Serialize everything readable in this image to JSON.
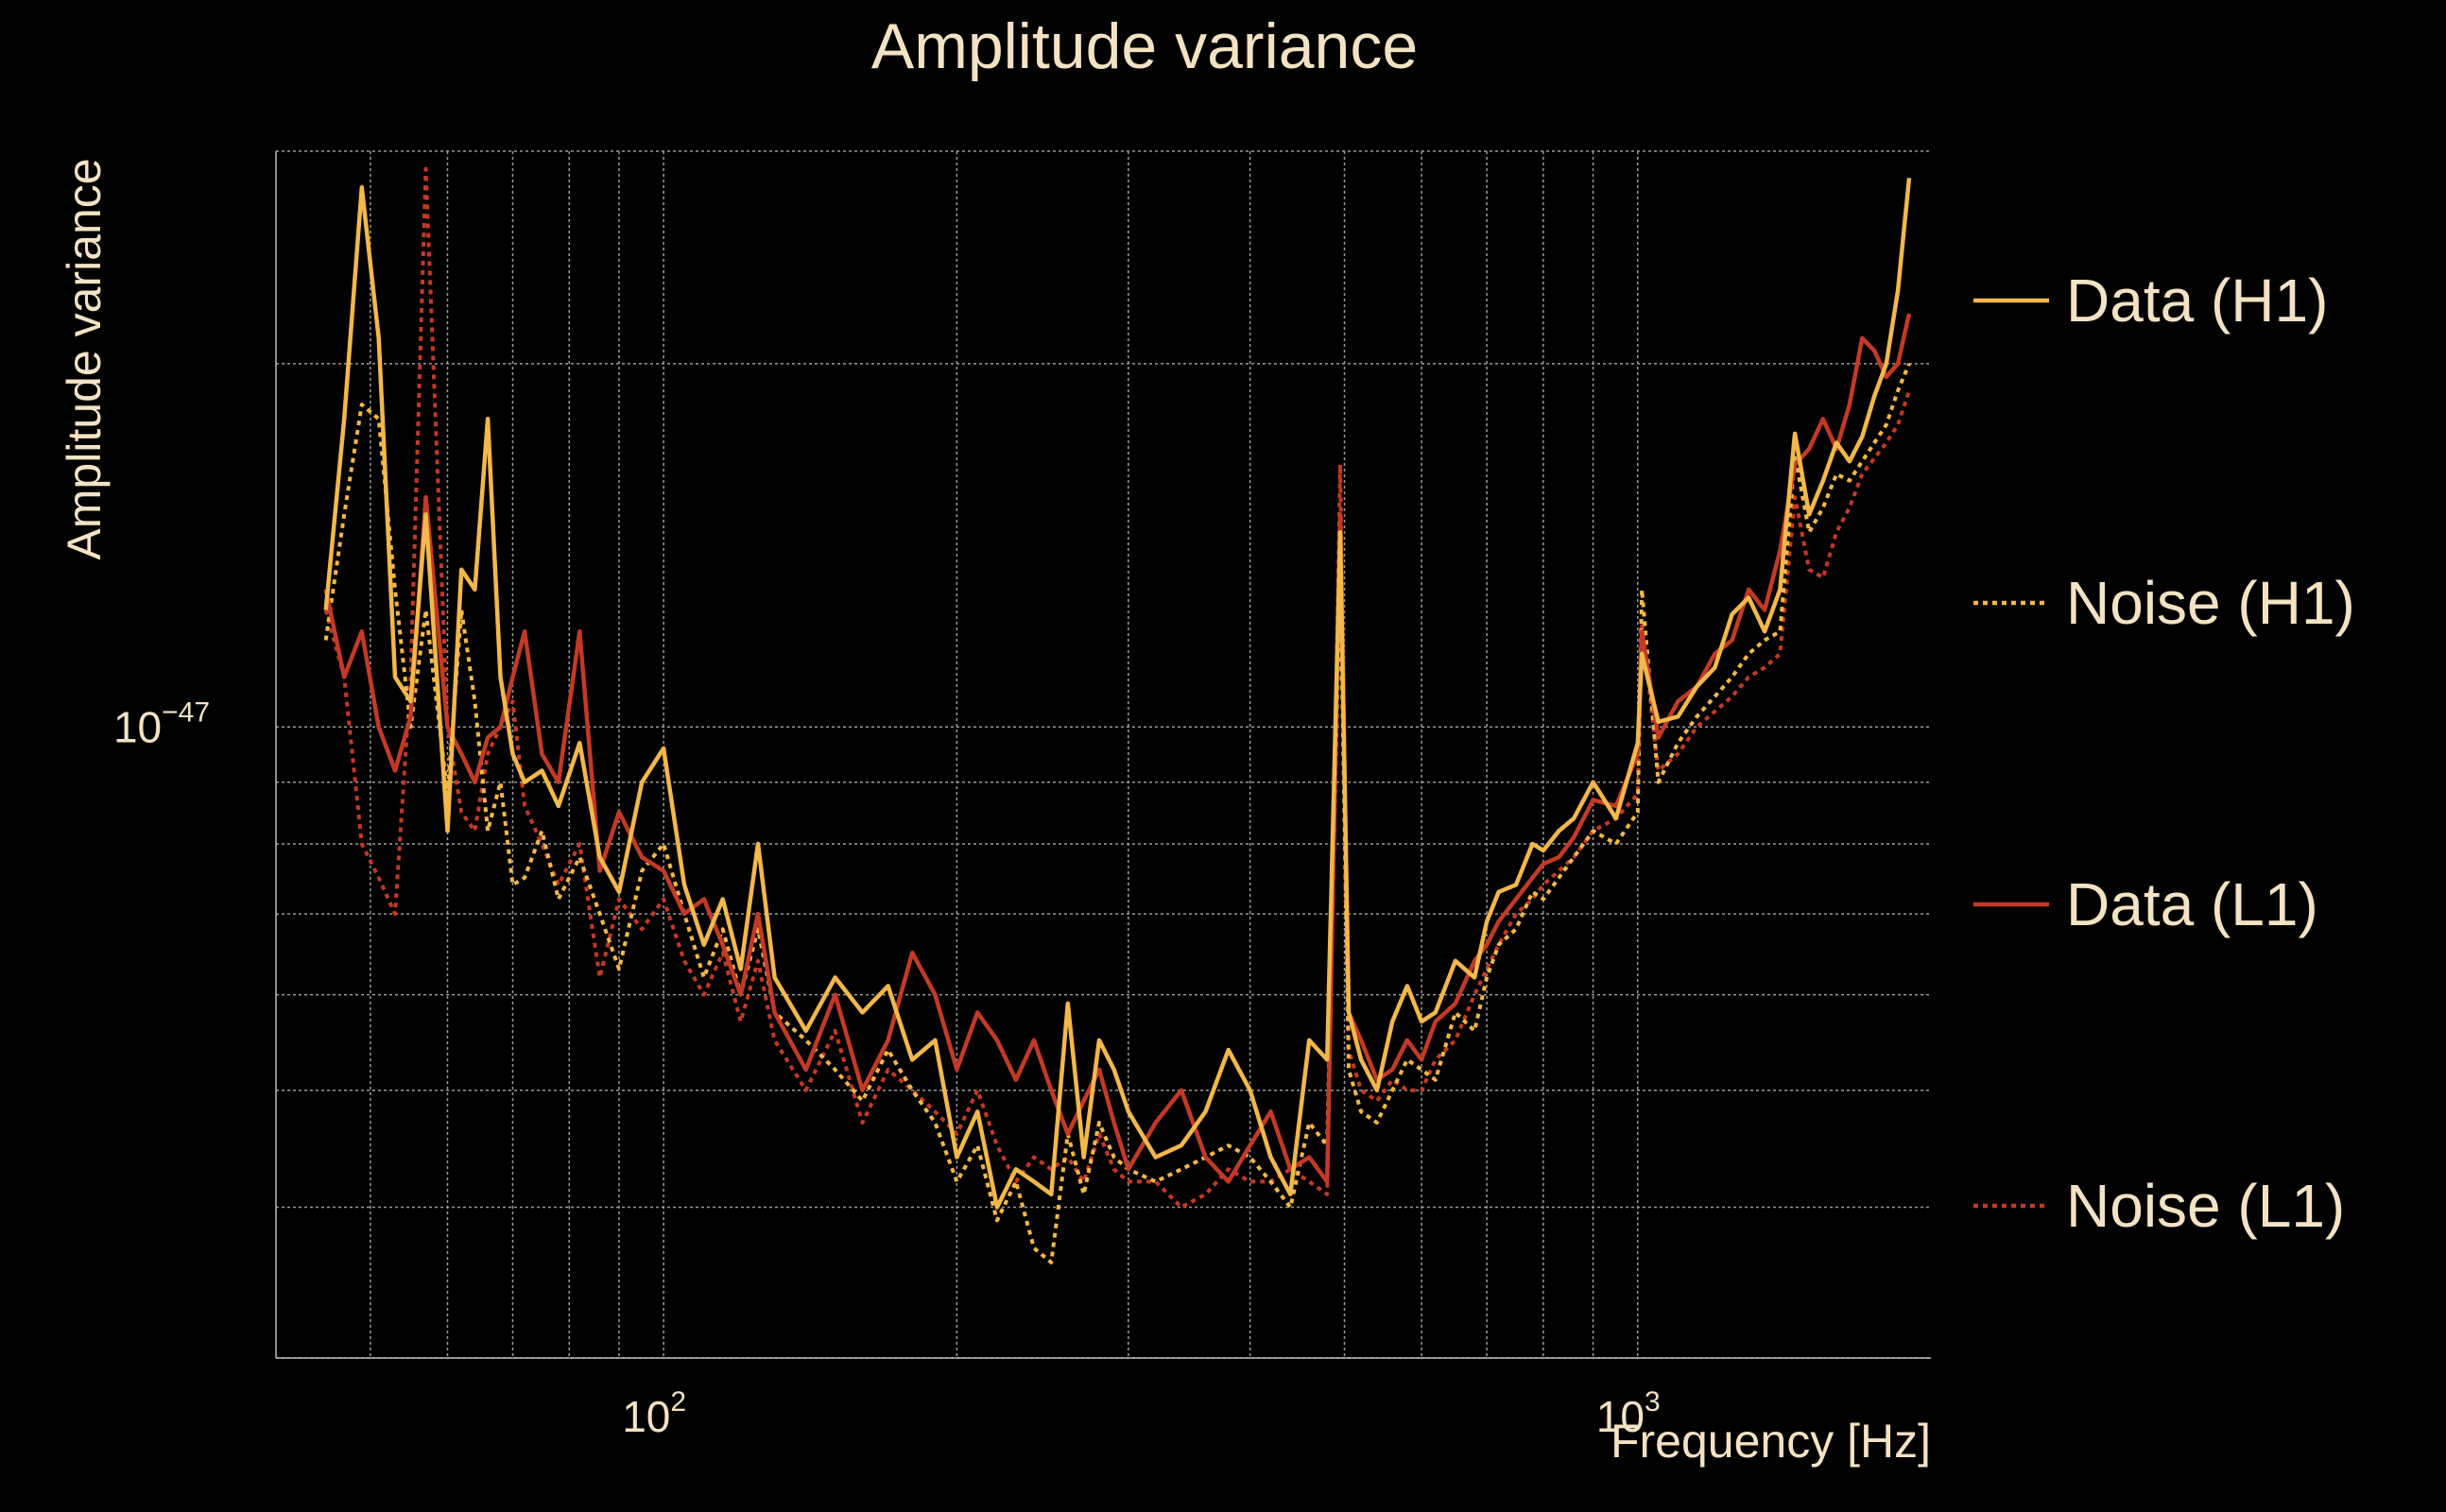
{
  "chart_data": {
    "type": "line",
    "title": "Amplitude variance",
    "xlabel": "Frequency [Hz]",
    "ylabel": "Amplitude variance",
    "x_scale": "log",
    "y_scale": "log",
    "xlim": [
      40,
      2000
    ],
    "ylim": [
      3e-48,
      3e-47
    ],
    "x_ticks": [
      {
        "value": 100,
        "label_base": "10",
        "label_exp": "2"
      },
      {
        "value": 1000,
        "label_base": "10",
        "label_exp": "3"
      }
    ],
    "y_ticks": [
      {
        "value": 1e-47,
        "label_base": "10",
        "label_exp": "−47"
      }
    ],
    "grid": true,
    "legend_position": "right",
    "series": [
      {
        "name": "Data (H1)",
        "color": "#f2b84b",
        "style": "solid",
        "x": [
          45,
          47,
          49,
          51,
          53,
          55,
          57,
          60,
          62,
          64,
          66,
          68,
          70,
          72,
          75,
          78,
          82,
          86,
          90,
          95,
          100,
          105,
          110,
          115,
          120,
          125,
          130,
          140,
          150,
          160,
          170,
          180,
          190,
          200,
          210,
          220,
          230,
          240,
          250,
          260,
          270,
          280,
          290,
          300,
          320,
          340,
          360,
          380,
          400,
          420,
          440,
          460,
          480,
          495,
          505,
          520,
          540,
          560,
          580,
          600,
          620,
          650,
          680,
          700,
          720,
          750,
          780,
          800,
          830,
          860,
          900,
          950,
          1000,
          1010,
          1050,
          1100,
          1150,
          1200,
          1250,
          1300,
          1350,
          1400,
          1450,
          1500,
          1550,
          1600,
          1650,
          1700,
          1750,
          1800,
          1850,
          1900
        ],
        "y": [
          1.25,
          1.8,
          2.8,
          2.1,
          1.1,
          1.05,
          1.5,
          0.82,
          1.35,
          1.3,
          1.8,
          1.1,
          0.95,
          0.9,
          0.92,
          0.86,
          0.97,
          0.78,
          0.73,
          0.9,
          0.96,
          0.74,
          0.66,
          0.72,
          0.63,
          0.8,
          0.62,
          0.56,
          0.62,
          0.58,
          0.61,
          0.53,
          0.55,
          0.44,
          0.48,
          0.4,
          0.43,
          0.42,
          0.41,
          0.59,
          0.44,
          0.55,
          0.52,
          0.48,
          0.44,
          0.45,
          0.48,
          0.54,
          0.5,
          0.44,
          0.41,
          0.55,
          0.53,
          1.45,
          0.58,
          0.53,
          0.5,
          0.57,
          0.61,
          0.57,
          0.58,
          0.64,
          0.62,
          0.69,
          0.73,
          0.74,
          0.8,
          0.79,
          0.82,
          0.84,
          0.9,
          0.84,
          0.97,
          1.15,
          1.01,
          1.02,
          1.08,
          1.12,
          1.24,
          1.28,
          1.2,
          1.3,
          1.75,
          1.5,
          1.6,
          1.72,
          1.66,
          1.74,
          1.88,
          2.0,
          2.3,
          2.85
        ]
      },
      {
        "name": "Noise (H1)",
        "color": "#f2b84b",
        "style": "dotted",
        "x": [
          45,
          47,
          49,
          51,
          53,
          55,
          57,
          60,
          62,
          64,
          66,
          68,
          70,
          72,
          75,
          78,
          82,
          86,
          90,
          95,
          100,
          105,
          110,
          115,
          120,
          125,
          130,
          140,
          150,
          160,
          170,
          180,
          190,
          200,
          210,
          220,
          230,
          240,
          250,
          260,
          270,
          280,
          290,
          300,
          320,
          340,
          360,
          380,
          400,
          420,
          440,
          460,
          480,
          495,
          505,
          520,
          540,
          560,
          580,
          600,
          620,
          650,
          680,
          700,
          720,
          750,
          780,
          800,
          830,
          860,
          900,
          950,
          1000,
          1010,
          1050,
          1100,
          1150,
          1200,
          1250,
          1300,
          1350,
          1400,
          1450,
          1500,
          1550,
          1600,
          1650,
          1700,
          1750,
          1800,
          1850,
          1900
        ],
        "y": [
          1.18,
          1.5,
          1.85,
          1.8,
          1.3,
          1.0,
          1.25,
          0.88,
          1.25,
          1.05,
          0.82,
          0.9,
          0.74,
          0.75,
          0.82,
          0.72,
          0.78,
          0.7,
          0.63,
          0.76,
          0.8,
          0.7,
          0.62,
          0.68,
          0.6,
          0.68,
          0.58,
          0.55,
          0.52,
          0.49,
          0.54,
          0.5,
          0.47,
          0.42,
          0.45,
          0.39,
          0.42,
          0.37,
          0.36,
          0.46,
          0.41,
          0.47,
          0.44,
          0.43,
          0.42,
          0.43,
          0.44,
          0.45,
          0.44,
          0.42,
          0.4,
          0.47,
          0.45,
          1.35,
          0.52,
          0.48,
          0.47,
          0.5,
          0.53,
          0.52,
          0.51,
          0.58,
          0.56,
          0.62,
          0.66,
          0.68,
          0.73,
          0.72,
          0.75,
          0.78,
          0.82,
          0.8,
          0.85,
          1.3,
          0.9,
          0.97,
          1.02,
          1.06,
          1.1,
          1.15,
          1.18,
          1.2,
          1.68,
          1.45,
          1.52,
          1.62,
          1.6,
          1.66,
          1.72,
          1.78,
          1.9,
          2.0
        ]
      },
      {
        "name": "Data (L1)",
        "color": "#c23a27",
        "style": "solid",
        "x": [
          45,
          47,
          49,
          51,
          53,
          55,
          57,
          60,
          62,
          64,
          66,
          68,
          70,
          72,
          75,
          78,
          82,
          86,
          90,
          95,
          100,
          105,
          110,
          115,
          120,
          125,
          130,
          140,
          150,
          160,
          170,
          180,
          190,
          200,
          210,
          220,
          230,
          240,
          250,
          260,
          270,
          280,
          290,
          300,
          320,
          340,
          360,
          380,
          400,
          420,
          440,
          460,
          480,
          495,
          505,
          520,
          540,
          560,
          580,
          600,
          620,
          650,
          680,
          700,
          720,
          750,
          780,
          800,
          830,
          860,
          900,
          950,
          1000,
          1010,
          1050,
          1100,
          1150,
          1200,
          1250,
          1300,
          1350,
          1400,
          1450,
          1500,
          1550,
          1600,
          1650,
          1700,
          1750,
          1800,
          1850,
          1900
        ],
        "y": [
          1.3,
          1.1,
          1.2,
          1.0,
          0.92,
          1.02,
          1.55,
          1.0,
          0.95,
          0.9,
          0.98,
          1.0,
          1.1,
          1.2,
          0.95,
          0.9,
          1.2,
          0.76,
          0.85,
          0.78,
          0.76,
          0.7,
          0.72,
          0.66,
          0.6,
          0.7,
          0.58,
          0.52,
          0.6,
          0.5,
          0.55,
          0.65,
          0.6,
          0.52,
          0.58,
          0.55,
          0.51,
          0.55,
          0.5,
          0.46,
          0.49,
          0.52,
          0.47,
          0.43,
          0.47,
          0.5,
          0.44,
          0.42,
          0.45,
          0.48,
          0.43,
          0.44,
          0.42,
          1.5,
          0.58,
          0.55,
          0.51,
          0.52,
          0.55,
          0.53,
          0.57,
          0.59,
          0.64,
          0.66,
          0.69,
          0.72,
          0.75,
          0.77,
          0.78,
          0.81,
          0.87,
          0.86,
          0.95,
          1.2,
          0.98,
          1.05,
          1.08,
          1.15,
          1.18,
          1.3,
          1.25,
          1.4,
          1.65,
          1.7,
          1.8,
          1.7,
          1.85,
          2.1,
          2.05,
          1.95,
          2.0,
          2.2
        ]
      },
      {
        "name": "Noise (L1)",
        "color": "#c23a27",
        "style": "dotted",
        "x": [
          45,
          47,
          49,
          51,
          53,
          55,
          57,
          60,
          62,
          64,
          66,
          68,
          70,
          72,
          75,
          78,
          82,
          86,
          90,
          95,
          100,
          105,
          110,
          115,
          120,
          125,
          130,
          140,
          150,
          160,
          170,
          180,
          190,
          200,
          210,
          220,
          230,
          240,
          250,
          260,
          270,
          280,
          290,
          300,
          320,
          340,
          360,
          380,
          400,
          420,
          440,
          460,
          480,
          495,
          505,
          520,
          540,
          560,
          580,
          600,
          620,
          650,
          680,
          700,
          720,
          750,
          780,
          800,
          830,
          860,
          900,
          950,
          1000,
          1010,
          1050,
          1100,
          1150,
          1200,
          1250,
          1300,
          1350,
          1400,
          1450,
          1500,
          1550,
          1600,
          1650,
          1700,
          1750,
          1800,
          1850,
          1900
        ],
        "y": [
          1.25,
          1.1,
          0.8,
          0.75,
          0.7,
          1.1,
          2.9,
          1.0,
          0.85,
          0.82,
          0.95,
          1.0,
          1.05,
          0.86,
          0.8,
          0.74,
          0.8,
          0.62,
          0.72,
          0.68,
          0.72,
          0.64,
          0.6,
          0.65,
          0.57,
          0.64,
          0.55,
          0.5,
          0.56,
          0.47,
          0.52,
          0.5,
          0.48,
          0.46,
          0.5,
          0.45,
          0.42,
          0.44,
          0.43,
          0.44,
          0.42,
          0.46,
          0.43,
          0.42,
          0.42,
          0.4,
          0.41,
          0.43,
          0.42,
          0.42,
          0.43,
          0.42,
          0.41,
          1.65,
          0.54,
          0.5,
          0.49,
          0.51,
          0.5,
          0.5,
          0.53,
          0.55,
          0.6,
          0.63,
          0.66,
          0.7,
          0.72,
          0.74,
          0.76,
          0.78,
          0.82,
          0.84,
          0.88,
          1.22,
          0.92,
          0.95,
          1.0,
          1.03,
          1.06,
          1.1,
          1.12,
          1.15,
          1.55,
          1.35,
          1.33,
          1.45,
          1.52,
          1.62,
          1.67,
          1.72,
          1.78,
          1.9
        ]
      }
    ]
  }
}
